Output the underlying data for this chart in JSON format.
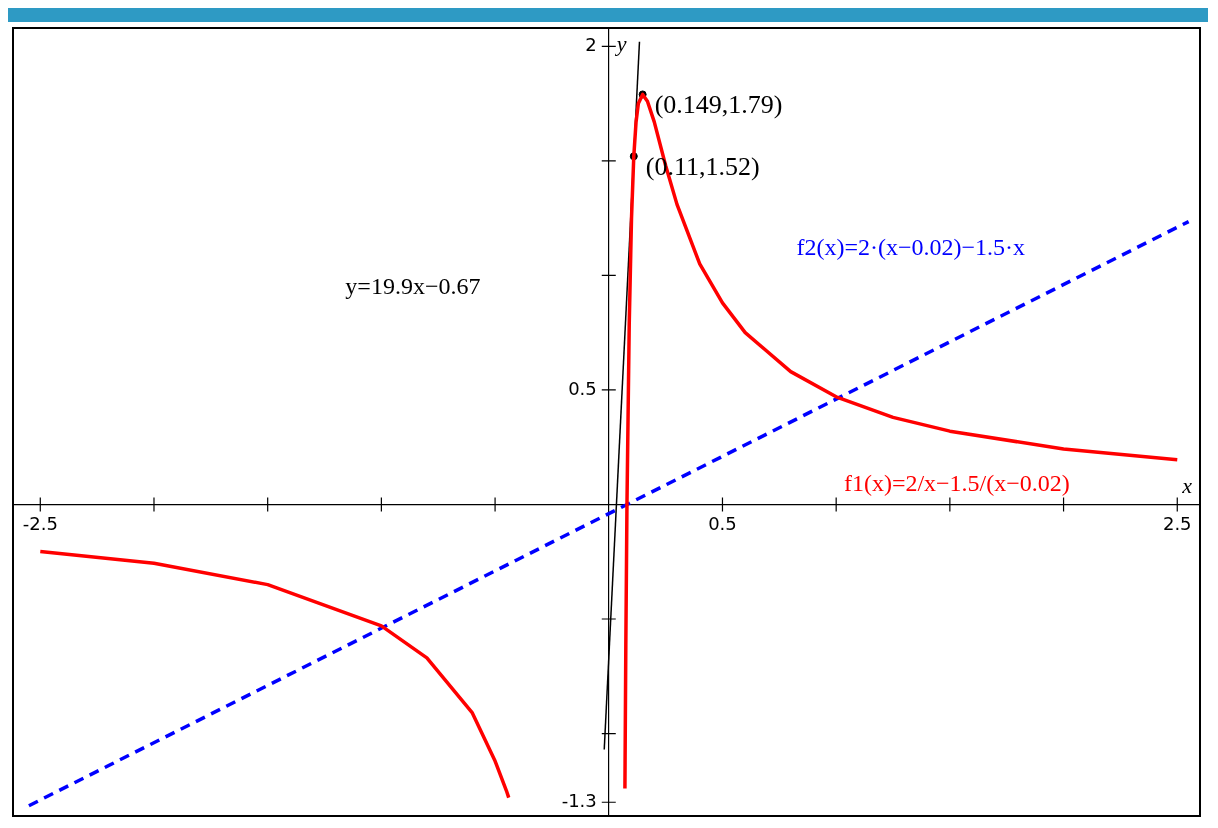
{
  "chart_data": {
    "type": "line",
    "xlabel": "x",
    "ylabel": "y",
    "xlim": [
      -2.62,
      2.6
    ],
    "ylim": [
      -1.36,
      2.08
    ],
    "grid": false,
    "legend": false,
    "marker": "none",
    "xticks": [
      -2.5,
      {
        "value": -2,
        "label": null
      },
      {
        "value": -1.5,
        "label": null
      },
      {
        "value": -1,
        "label": null
      },
      {
        "value": -0.5,
        "label": null
      },
      0.5,
      {
        "value": 1,
        "label": null
      },
      {
        "value": 1.5,
        "label": null
      },
      {
        "value": 2,
        "label": null
      },
      2.5
    ],
    "yticks": [
      -1.3,
      {
        "value": -1,
        "label": null
      },
      {
        "value": -0.5,
        "label": null
      },
      0.5,
      {
        "value": 1,
        "label": null
      },
      {
        "value": 1.5,
        "label": null
      },
      2
    ],
    "series": [
      {
        "name": "f1(x)=2/x−1.5/(x−0.02)",
        "color": "#ff0000",
        "x": [
          -2.5,
          -2,
          -1.5,
          -1,
          -0.8,
          -0.6,
          -0.5,
          -0.45,
          -0.44,
          0,
          0.071,
          0.075,
          0.08,
          0.09,
          0.1,
          0.11,
          0.12,
          0.13,
          0.149,
          0.17,
          0.2,
          0.25,
          0.3,
          0.4,
          0.5,
          0.6,
          0.8,
          1,
          1.25,
          1.5,
          2,
          2.5
        ],
        "values": [
          -0.205,
          -0.257,
          -0.35,
          -0.53,
          -0.67,
          -0.91,
          -1.12,
          -1.25,
          -1.28,
          null,
          -1.24,
          -0.61,
          0,
          0.79,
          1.25,
          1.52,
          1.67,
          1.75,
          1.79,
          1.76,
          1.67,
          1.48,
          1.31,
          1.05,
          0.88,
          0.75,
          0.58,
          0.47,
          0.38,
          0.32,
          0.242,
          0.195
        ]
      },
      {
        "name": "f2(x)=2·(x−0.02)−1.5·x",
        "color": "#0000ff",
        "line_style": "dashed",
        "x": [
          -2.55,
          2.55
        ],
        "values": [
          -1.315,
          1.235
        ]
      },
      {
        "name": "y=19.9x−0.67",
        "color": "#000000",
        "x": [
          -0.02,
          0.135
        ],
        "values": [
          -1.07,
          2.02
        ]
      },
      {
        "type": "scatter",
        "color": "#000000",
        "marker": "circle",
        "x": [
          0.149,
          0.11
        ],
        "values": [
          1.79,
          1.52
        ],
        "value_labels": [
          "(0.149,1.79)",
          "(0.11,1.52)"
        ]
      }
    ]
  }
}
